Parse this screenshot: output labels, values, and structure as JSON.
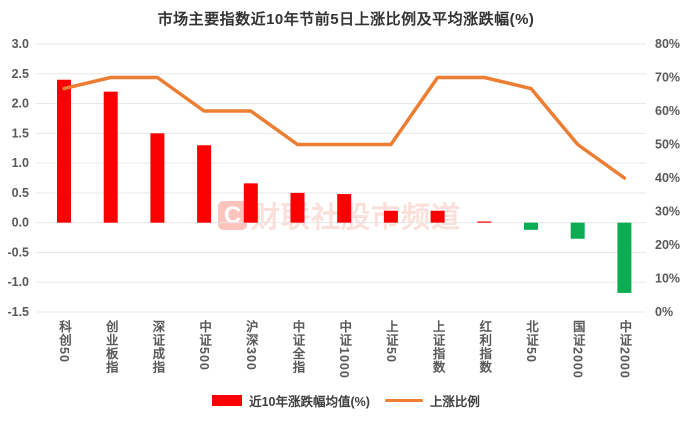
{
  "title": "市场主要指数近10年节前5日上涨比例及平均涨跌幅(%)",
  "watermark": {
    "logo_letter": "C",
    "text": "财联社股市频道"
  },
  "legend": {
    "bar_label": "近10年涨跌幅均值(%)",
    "line_label": "上涨比例"
  },
  "colors": {
    "bar_positive": "#fa0000",
    "bar_negative": "#0cad52",
    "line": "#ed7d31",
    "grid": "#e7e7e7",
    "tick_text": "#595959",
    "title_text": "#333333",
    "background": "#ffffff"
  },
  "chart_data": {
    "type": "combo-bar-line",
    "title": "市场主要指数近10年节前5日上涨比例及平均涨跌幅(%)",
    "categories": [
      "科创50",
      "创业板指",
      "深证成指",
      "中证500",
      "沪深300",
      "中证全指",
      "中证1000",
      "上证50",
      "上证指数",
      "红利指数",
      "北证50",
      "国证2000",
      "中证2000"
    ],
    "series": [
      {
        "name": "近10年涨跌幅均值(%)",
        "type": "bar",
        "axis": "left",
        "values": [
          2.4,
          2.2,
          1.5,
          1.3,
          0.66,
          0.5,
          0.48,
          0.2,
          0.2,
          0.02,
          -0.12,
          -0.27,
          -1.18
        ],
        "color_positive": "#fa0000",
        "color_negative": "#0cad52"
      },
      {
        "name": "上涨比例",
        "type": "line",
        "axis": "right",
        "unit": "%",
        "values": [
          66.7,
          70,
          70,
          60,
          60,
          50,
          50,
          50,
          70,
          70,
          66.7,
          50,
          40
        ],
        "color": "#ed7d31"
      }
    ],
    "left_axis": {
      "min": -1.5,
      "max": 3.0,
      "step": 0.5,
      "tick_labels": [
        "3.0",
        "2.5",
        "2.0",
        "1.5",
        "1.0",
        "0.5",
        "0.0",
        "-0.5",
        "-1.0",
        "-1.5"
      ]
    },
    "right_axis": {
      "min": 0,
      "max": 80,
      "step": 10,
      "tick_labels": [
        "80%",
        "70%",
        "60%",
        "50%",
        "40%",
        "30%",
        "20%",
        "10%",
        "0%"
      ]
    },
    "grid": true,
    "legend_position": "bottom"
  }
}
